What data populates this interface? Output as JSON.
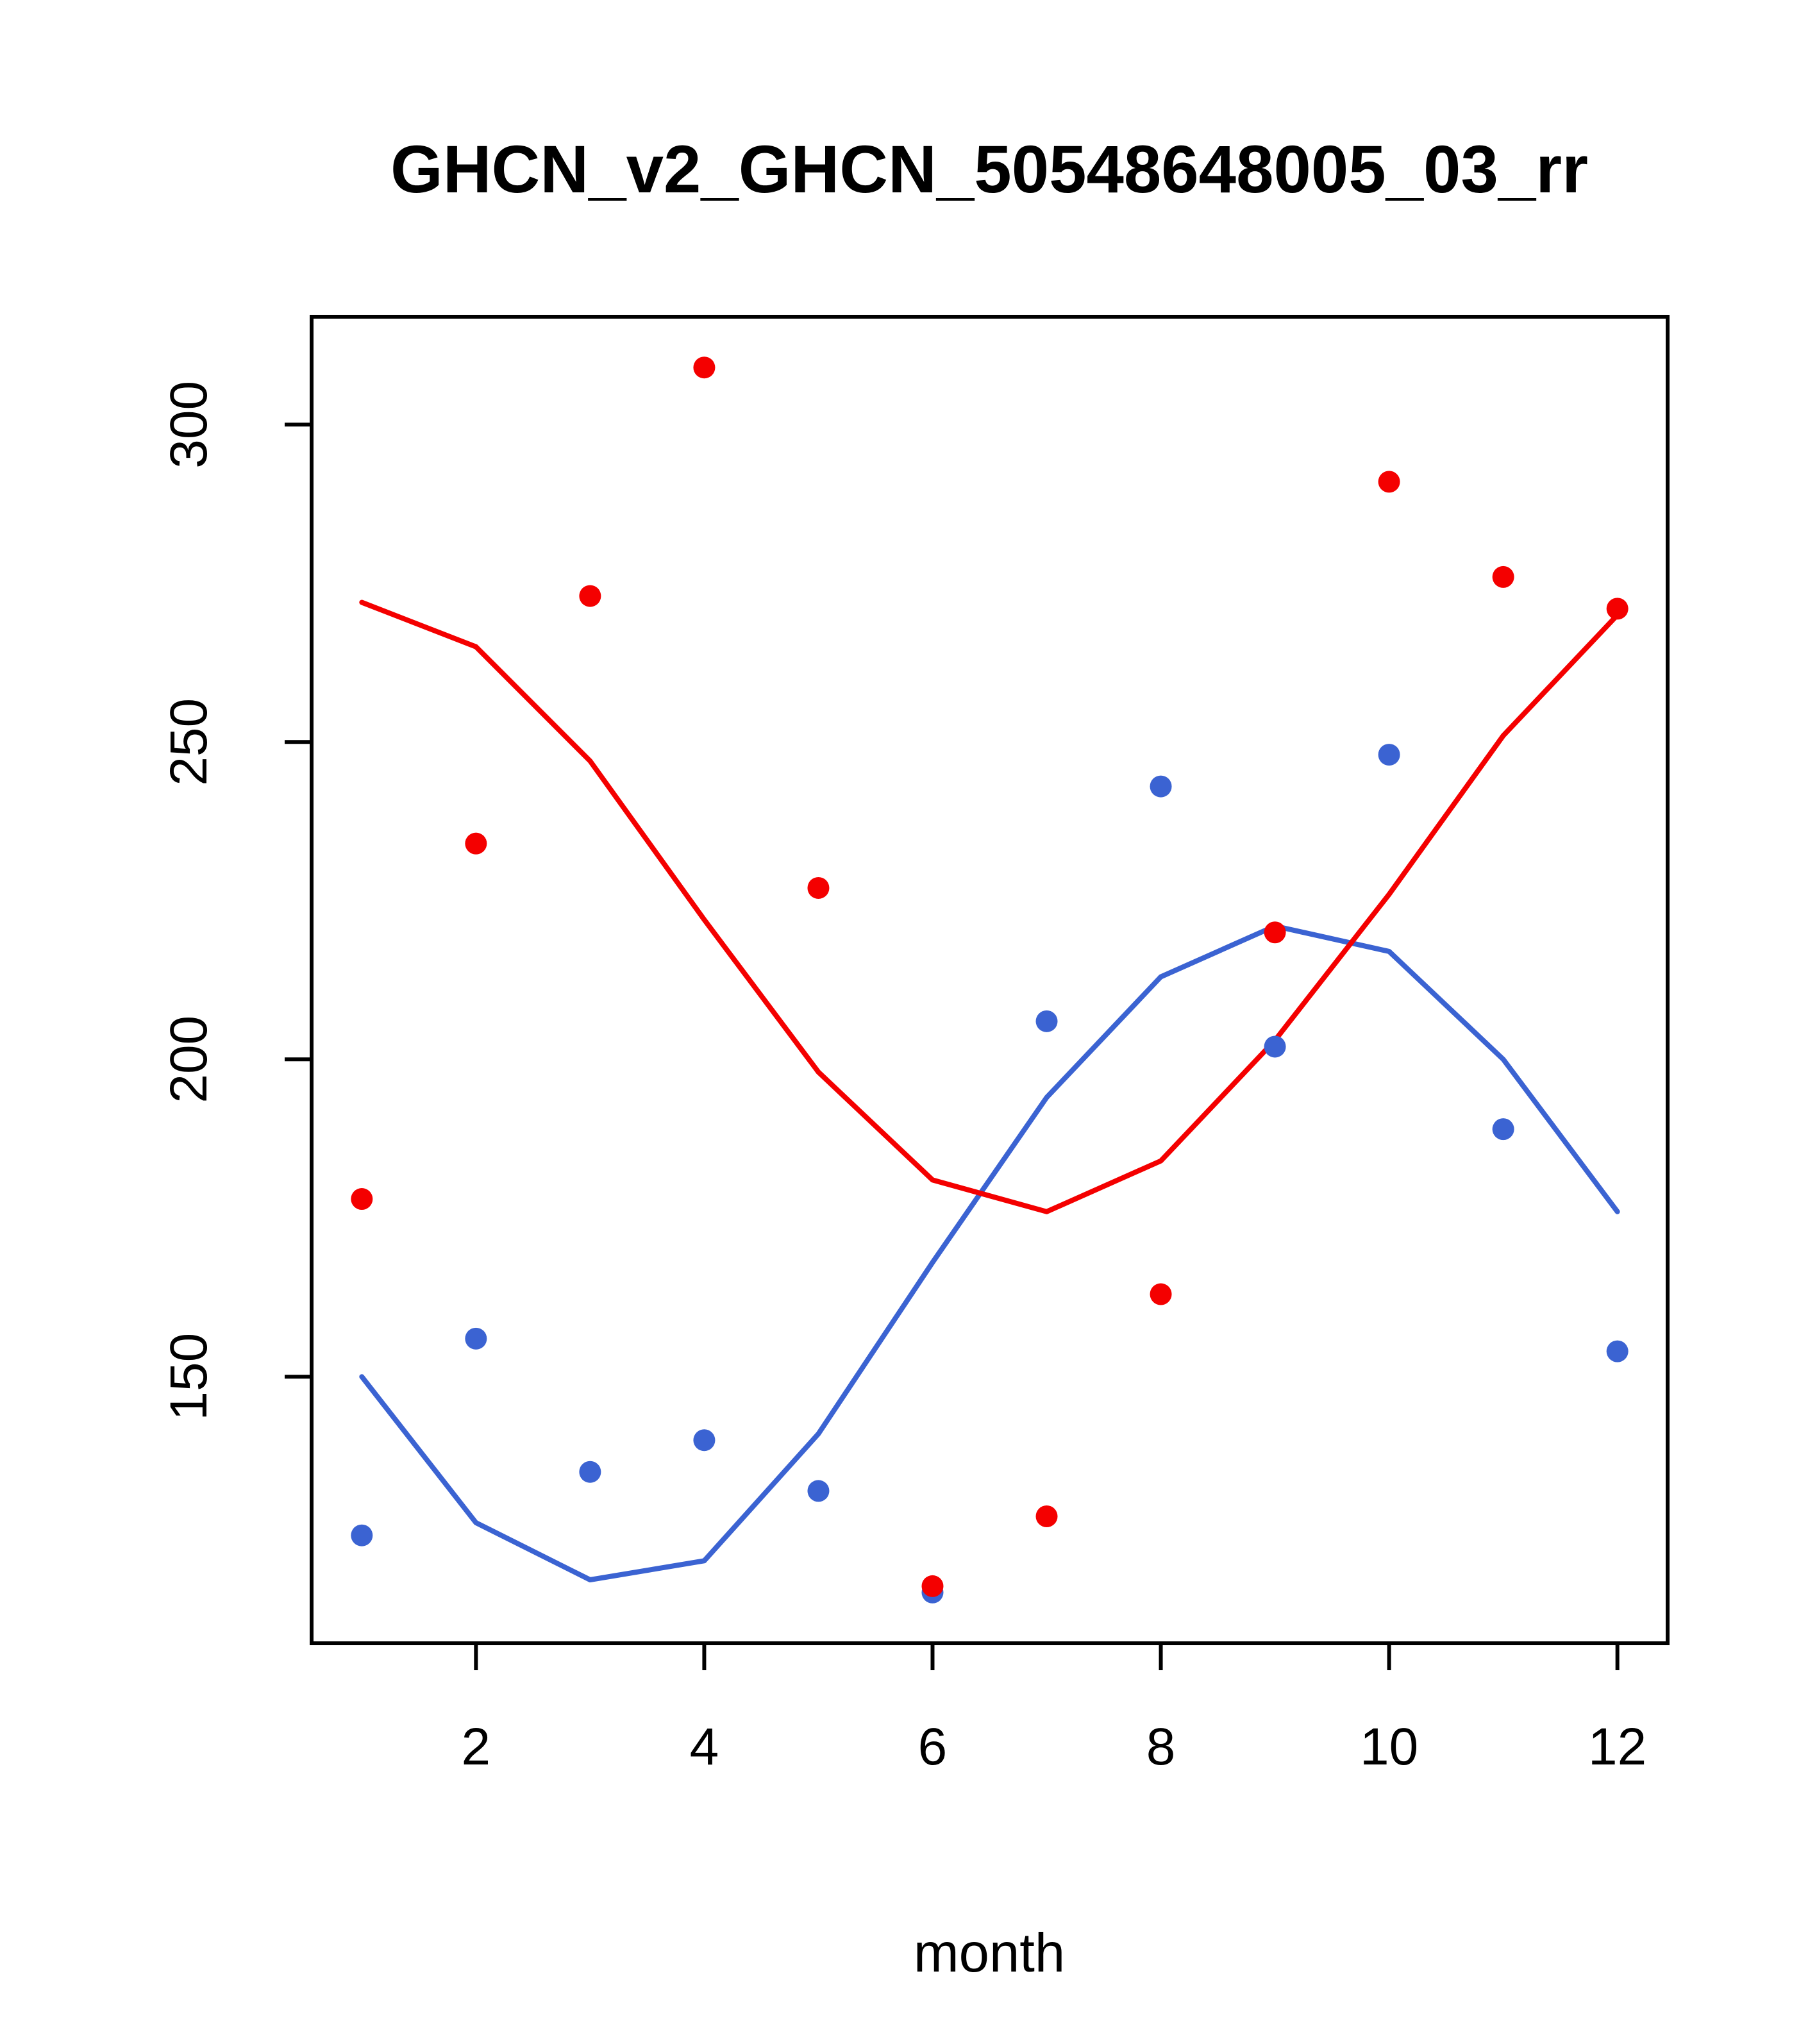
{
  "title": "GHCN_v2_GHCN_50548648005_03_rr",
  "chart_data": {
    "type": "scatter",
    "title": "GHCN_v2_GHCN_50548648005_03_rr",
    "xlabel": "month",
    "ylabel": "",
    "x": [
      1,
      2,
      3,
      4,
      5,
      6,
      7,
      8,
      9,
      10,
      11,
      12
    ],
    "xlim": [
      0.56,
      12.44
    ],
    "ylim": [
      108,
      317
    ],
    "xticks": [
      2,
      4,
      6,
      8,
      10,
      12
    ],
    "yticks": [
      150,
      200,
      250,
      300
    ],
    "grid": false,
    "legend": "none",
    "colors": {
      "red": "#f40000",
      "blue": "#3b63d2"
    },
    "series": [
      {
        "name": "blue-smooth-line",
        "kind": "line",
        "color": "#3b63d2",
        "values": [
          150,
          127,
          118,
          121,
          141,
          168,
          194,
          213,
          221,
          217,
          200,
          176
        ]
      },
      {
        "name": "red-smooth-line",
        "kind": "line",
        "color": "#f40000",
        "values": [
          272,
          265,
          247,
          222,
          198,
          181,
          176,
          184,
          203,
          226,
          251,
          270
        ]
      },
      {
        "name": "blue-points",
        "kind": "points",
        "color": "#3b63d2",
        "values": [
          125,
          156,
          135,
          140,
          132,
          116,
          206,
          243,
          202,
          248,
          189,
          154
        ]
      },
      {
        "name": "red-points",
        "kind": "points",
        "color": "#f40000",
        "values": [
          178,
          234,
          273,
          309,
          227,
          117,
          128,
          163,
          220,
          291,
          276,
          271
        ]
      }
    ]
  }
}
